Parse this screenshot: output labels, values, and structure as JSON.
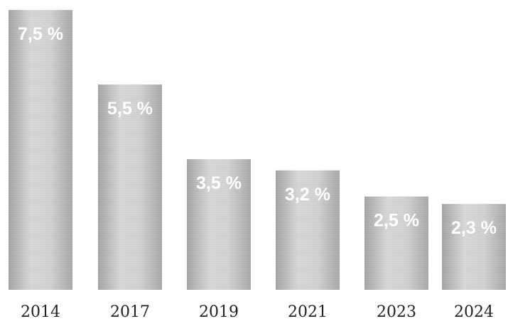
{
  "chart_data": {
    "type": "bar",
    "title": "",
    "xlabel": "",
    "ylabel": "",
    "categories": [
      "2014",
      "2017",
      "2019",
      "2021",
      "2023",
      "2024"
    ],
    "values": [
      7.5,
      5.5,
      3.5,
      3.2,
      2.5,
      2.3
    ],
    "data_labels": [
      "7,5 %",
      "5,5 %",
      "3,5 %",
      "3,2 %",
      "2,5 %",
      "2,3 %"
    ],
    "ylim": [
      0,
      7.5
    ],
    "grid": false,
    "legend": "none",
    "colors": {
      "bar": "#b9b9b9",
      "bar_light": "#e2e2e2",
      "bar_dark": "#9a9a9a",
      "label": "#ffffff",
      "tick": "#222222"
    }
  }
}
